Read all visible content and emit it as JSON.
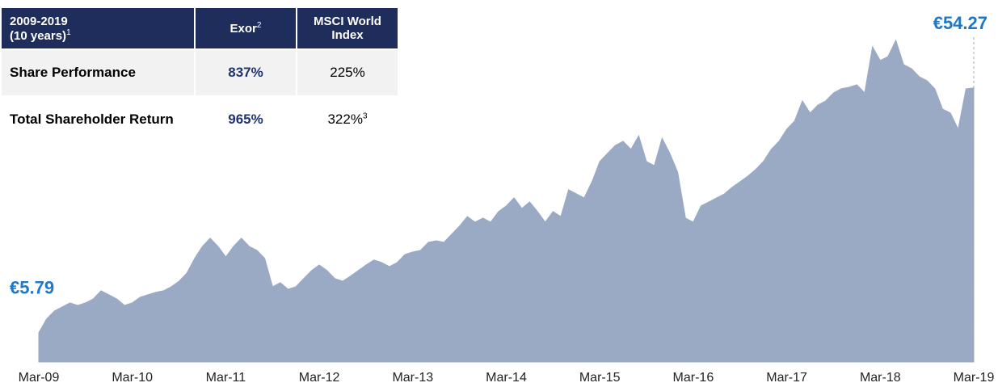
{
  "chart_data": {
    "type": "area",
    "color": "#9aaac4",
    "label_color": "#1f77c8",
    "ylim": [
      0,
      64
    ],
    "categories": [
      "Mar-09",
      null,
      null,
      null,
      null,
      null,
      null,
      null,
      null,
      null,
      null,
      null,
      "Mar-10",
      null,
      null,
      null,
      null,
      null,
      null,
      null,
      null,
      null,
      null,
      null,
      "Mar-11",
      null,
      null,
      null,
      null,
      null,
      null,
      null,
      null,
      null,
      null,
      null,
      "Mar-12",
      null,
      null,
      null,
      null,
      null,
      null,
      null,
      null,
      null,
      null,
      null,
      "Mar-13",
      null,
      null,
      null,
      null,
      null,
      null,
      null,
      null,
      null,
      null,
      null,
      "Mar-14",
      null,
      null,
      null,
      null,
      null,
      null,
      null,
      null,
      null,
      null,
      null,
      "Mar-15",
      null,
      null,
      null,
      null,
      null,
      null,
      null,
      null,
      null,
      null,
      null,
      "Mar-16",
      null,
      null,
      null,
      null,
      null,
      null,
      null,
      null,
      null,
      null,
      null,
      "Mar-17",
      null,
      null,
      null,
      null,
      null,
      null,
      null,
      null,
      null,
      null,
      null,
      "Mar-18",
      null,
      null,
      null,
      null,
      null,
      null,
      null,
      null,
      null,
      null,
      null,
      "Mar-19"
    ],
    "values": [
      5.79,
      8.5,
      10.1,
      10.9,
      11.7,
      11.2,
      11.7,
      12.5,
      14.1,
      13.3,
      12.5,
      11.2,
      11.7,
      12.8,
      13.3,
      13.8,
      14.1,
      14.9,
      16.0,
      17.6,
      20.5,
      22.9,
      24.5,
      22.9,
      20.8,
      22.9,
      24.5,
      22.9,
      22.1,
      20.5,
      14.9,
      15.7,
      14.4,
      14.9,
      16.5,
      18.1,
      19.2,
      18.1,
      16.5,
      16.0,
      17.0,
      18.1,
      19.2,
      20.2,
      19.7,
      18.9,
      19.7,
      21.3,
      21.8,
      22.1,
      23.7,
      24.0,
      23.7,
      25.3,
      26.9,
      28.8,
      27.7,
      28.5,
      27.7,
      29.8,
      30.9,
      32.5,
      30.4,
      31.7,
      29.8,
      27.7,
      29.8,
      28.8,
      34.1,
      33.3,
      32.5,
      35.7,
      39.7,
      41.3,
      42.9,
      43.7,
      42.1,
      44.8,
      39.7,
      38.9,
      44.3,
      41.3,
      37.6,
      28.5,
      27.7,
      30.9,
      31.7,
      32.5,
      33.3,
      34.6,
      35.7,
      36.8,
      38.1,
      39.7,
      42.1,
      43.7,
      46.1,
      47.7,
      51.7,
      49.3,
      50.9,
      51.7,
      53.3,
      54.1,
      54.4,
      54.9,
      53.3,
      62.4,
      59.7,
      60.5,
      63.7,
      58.9,
      58.1,
      56.5,
      55.7,
      54.1,
      50.1,
      49.3,
      46.1,
      54.1,
      54.27
    ],
    "value_labels": [
      "€5.79",
      null,
      null,
      null,
      null,
      null,
      null,
      null,
      null,
      null,
      null,
      null,
      null,
      null,
      null,
      null,
      null,
      null,
      null,
      null,
      null,
      null,
      null,
      null,
      null,
      null,
      null,
      null,
      null,
      null,
      null,
      null,
      null,
      null,
      null,
      null,
      null,
      null,
      null,
      null,
      null,
      null,
      null,
      null,
      null,
      null,
      null,
      null,
      null,
      null,
      null,
      null,
      null,
      null,
      null,
      null,
      null,
      null,
      null,
      null,
      null,
      null,
      null,
      null,
      null,
      null,
      null,
      null,
      null,
      null,
      null,
      null,
      null,
      null,
      null,
      null,
      null,
      null,
      null,
      null,
      null,
      null,
      null,
      null,
      null,
      null,
      null,
      null,
      null,
      null,
      null,
      null,
      null,
      null,
      null,
      null,
      null,
      null,
      null,
      null,
      null,
      null,
      null,
      null,
      null,
      null,
      null,
      null,
      null,
      null,
      null,
      null,
      null,
      null,
      null,
      null,
      null,
      null,
      null,
      null,
      "€54.27"
    ]
  },
  "table": {
    "header": [
      {
        "lines": [
          "2009-2019",
          "(10 years)"
        ],
        "sup": "1"
      },
      {
        "lines": [
          "Exor"
        ],
        "sup": "2"
      },
      {
        "lines": [
          "MSCI World",
          "Index"
        ]
      }
    ],
    "rows": [
      {
        "label": "Share Performance",
        "exor": "837%",
        "msci": "225%"
      },
      {
        "label": "Total Shareholder Return",
        "exor": "965%",
        "msci": "322%",
        "msci_sup": "3"
      }
    ]
  }
}
